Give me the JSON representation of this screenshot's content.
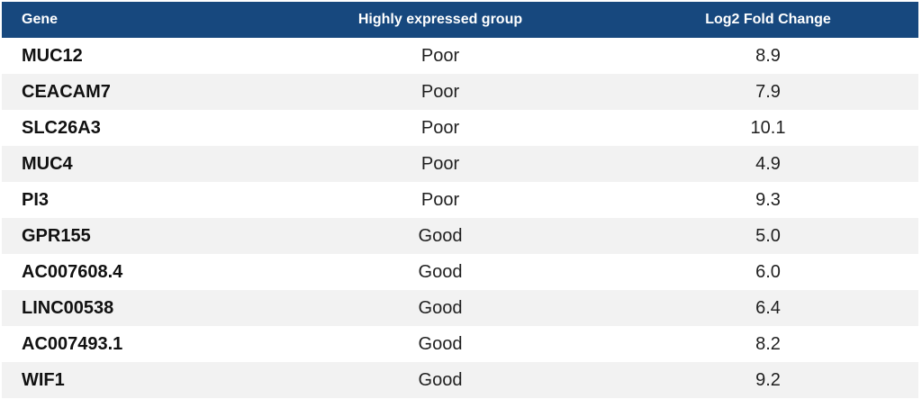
{
  "table": {
    "headers": {
      "gene": "Gene",
      "group": "Highly expressed group",
      "fold_change": "Log2 Fold Change"
    },
    "rows": [
      {
        "gene": "MUC12",
        "group": "Poor",
        "fold_change": "8.9"
      },
      {
        "gene": "CEACAM7",
        "group": "Poor",
        "fold_change": "7.9"
      },
      {
        "gene": "SLC26A3",
        "group": "Poor",
        "fold_change": "10.1"
      },
      {
        "gene": "MUC4",
        "group": "Poor",
        "fold_change": "4.9"
      },
      {
        "gene": "PI3",
        "group": "Poor",
        "fold_change": "9.3"
      },
      {
        "gene": "GPR155",
        "group": "Good",
        "fold_change": "5.0"
      },
      {
        "gene": "AC007608.4",
        "group": "Good",
        "fold_change": "6.0"
      },
      {
        "gene": "LINC00538",
        "group": "Good",
        "fold_change": "6.4"
      },
      {
        "gene": "AC007493.1",
        "group": "Good",
        "fold_change": "8.2"
      },
      {
        "gene": "WIF1",
        "group": "Good",
        "fold_change": "9.2"
      }
    ]
  },
  "colors": {
    "header_bg": "#17487e",
    "header_text": "#ffffff",
    "stripe_bg": "#f2f2f2"
  }
}
